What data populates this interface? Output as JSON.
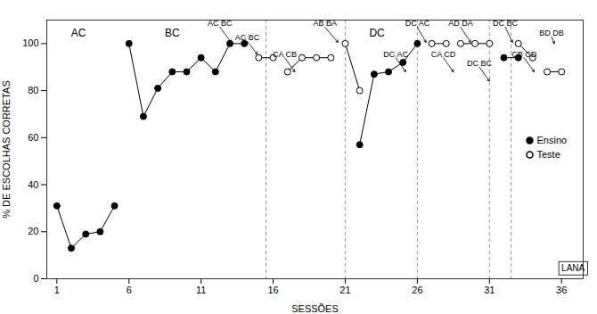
{
  "chart_data": {
    "type": "line",
    "xlabel": "SESSÕES",
    "ylabel": "% DE ESCOLHAS CORRETAS",
    "xlim": [
      0.3,
      37.5
    ],
    "ylim": [
      0,
      110
    ],
    "xticks": [
      1,
      6,
      11,
      16,
      21,
      26,
      31,
      36
    ],
    "yticks": [
      0,
      20,
      40,
      60,
      80,
      100
    ],
    "legend": "right",
    "series": [
      {
        "name": "Ensino",
        "color": "black",
        "marker": "filled",
        "x": [
          1,
          2,
          3,
          4,
          5,
          null,
          6,
          7,
          8,
          9,
          10,
          11,
          12,
          13,
          14,
          null,
          22,
          23,
          24,
          25,
          26,
          null,
          32,
          33
        ],
        "values": [
          31,
          13,
          19,
          20,
          31,
          null,
          100,
          69,
          81,
          88,
          88,
          94,
          88,
          100,
          100,
          null,
          57,
          87,
          88,
          92,
          100,
          null,
          94,
          94
        ]
      },
      {
        "name": "Teste",
        "color": "black",
        "marker": "open",
        "x": [
          15,
          16,
          null,
          17,
          18,
          19,
          20,
          null,
          21,
          22,
          null,
          27,
          28,
          null,
          29,
          30,
          31,
          null,
          33,
          34,
          null,
          35,
          36
        ],
        "values": [
          94,
          94,
          null,
          88,
          94,
          94,
          94,
          null,
          100,
          80,
          null,
          100,
          100,
          null,
          100,
          100,
          100,
          null,
          100,
          94,
          null,
          88,
          88
        ]
      }
    ],
    "dashed_vlines": [
      15.5,
      21.0,
      26.0,
      31.0,
      32.5
    ],
    "annotations": [
      {
        "text": "AC",
        "x": 2.5,
        "y": 103
      },
      {
        "text": "BC",
        "x": 9.0,
        "y": 103
      },
      {
        "text": "DC",
        "x": 23.2,
        "y": 103
      },
      {
        "text": "AC BC",
        "x": 12.3,
        "y": 107,
        "arrow_x": 13.1,
        "arrow_y": 100.5
      },
      {
        "text": "AC BC",
        "x": 14.2,
        "y": 101,
        "arrow_x": 14.9,
        "arrow_y": 95.5
      },
      {
        "text": "CA CB",
        "x": 16.8,
        "y": 94,
        "arrow_x": 17.5,
        "arrow_y": 88
      },
      {
        "text": "AB BA",
        "x": 19.6,
        "y": 107,
        "arrow_x": 20.5,
        "arrow_y": 100.5
      },
      {
        "text": "DC AC",
        "x": 24.5,
        "y": 94,
        "arrow_x": 25.2,
        "arrow_y": 88
      },
      {
        "text": "DC AC",
        "x": 26.0,
        "y": 107,
        "arrow_x": 26.6,
        "arrow_y": 100.5
      },
      {
        "text": "CA CD",
        "x": 27.8,
        "y": 94,
        "arrow_x": 28.5,
        "arrow_y": 88
      },
      {
        "text": "AD DA",
        "x": 29.0,
        "y": 107,
        "arrow_x": 29.7,
        "arrow_y": 100.5
      },
      {
        "text": "DC BC",
        "x": 30.3,
        "y": 90,
        "arrow_x": 31.0,
        "arrow_y": 84
      },
      {
        "text": "DC BC",
        "x": 32.1,
        "y": 107,
        "arrow_x": 32.6,
        "arrow_y": 100.5
      },
      {
        "text": "CB CD",
        "x": 33.4,
        "y": 94,
        "arrow_x": 34.1,
        "arrow_y": 88
      },
      {
        "text": "BD DB",
        "x": 35.3,
        "y": 103,
        "arrow_x": 35.5,
        "arrow_y": 100
      },
      {
        "text": "LANA",
        "x": 36.8,
        "y": 2,
        "box": true
      }
    ]
  }
}
